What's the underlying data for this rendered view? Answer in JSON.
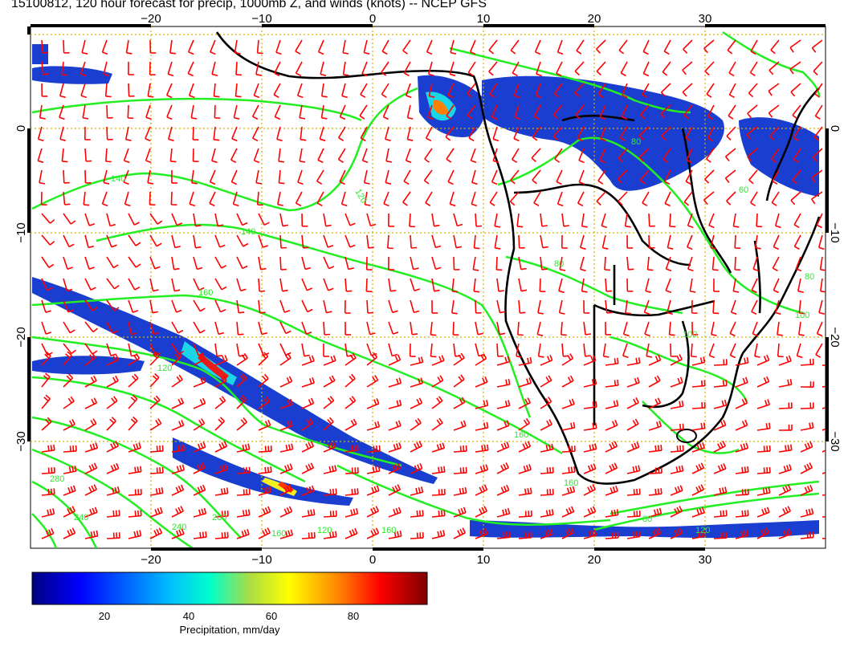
{
  "title": "15100812, 120 hour forecast for precip, 1000mb Z, and winds (knots) -- NCEP GFS",
  "map": {
    "lon_ticks": [
      "−20",
      "−10",
      "0",
      "10",
      "20",
      "30"
    ],
    "lat_ticks": [
      "0",
      "−10",
      "−20",
      "−30"
    ],
    "contour_labels": [
      "140",
      "120",
      "140",
      "160",
      "120",
      "160",
      "80",
      "60",
      "80",
      "100",
      "80",
      "100",
      "160",
      "280",
      "240",
      "240",
      "200",
      "160",
      "120",
      "160",
      "80",
      "120"
    ],
    "colors": {
      "wind_barbs": "#ff0000",
      "contours": "#22ee22",
      "coastlines": "#000000",
      "gridlines": "#d4b000"
    }
  },
  "colorbar": {
    "ticks": [
      "20",
      "40",
      "60",
      "80"
    ],
    "label": "Precipitation, mm/day",
    "range": [
      0,
      98
    ],
    "colormap": [
      "#00007f",
      "#0000ff",
      "#00bfff",
      "#00ffcc",
      "#aadd44",
      "#ffff00",
      "#ff8000",
      "#ff0000",
      "#7f0000"
    ]
  }
}
